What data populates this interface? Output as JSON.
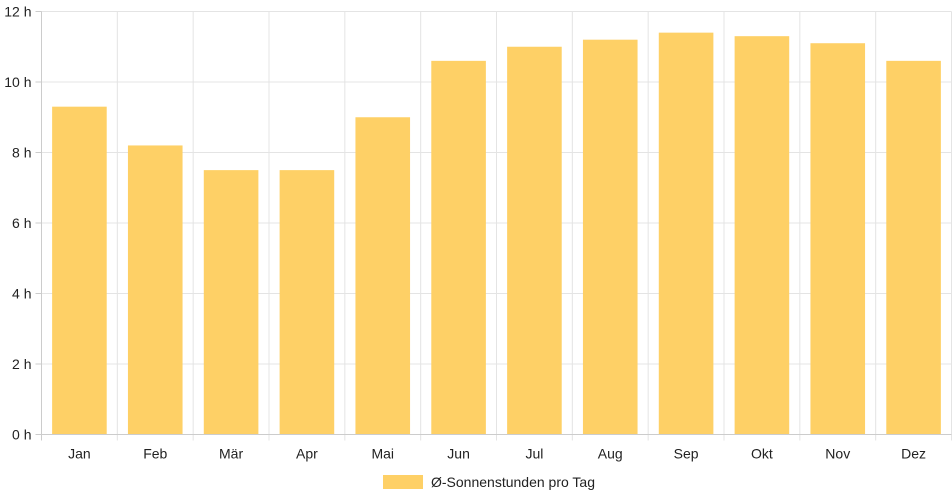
{
  "chart_data": {
    "type": "bar",
    "categories": [
      "Jan",
      "Feb",
      "Mär",
      "Apr",
      "Mai",
      "Jun",
      "Jul",
      "Aug",
      "Sep",
      "Okt",
      "Nov",
      "Dez"
    ],
    "series": [
      {
        "name": "Ø-Sonnenstunden pro Tag",
        "values": [
          9.3,
          8.2,
          7.5,
          7.5,
          9.0,
          10.6,
          11.0,
          11.2,
          11.4,
          11.3,
          11.1,
          10.6
        ],
        "color": "#fed066"
      }
    ],
    "ylim": [
      0,
      12
    ],
    "yticks": [
      0,
      2,
      4,
      6,
      8,
      10,
      12
    ],
    "ytick_labels": [
      "0 h",
      "2 h",
      "4 h",
      "6 h",
      "8 h",
      "10 h",
      "12 h"
    ],
    "grid": true,
    "legend_position": "bottom-center"
  }
}
